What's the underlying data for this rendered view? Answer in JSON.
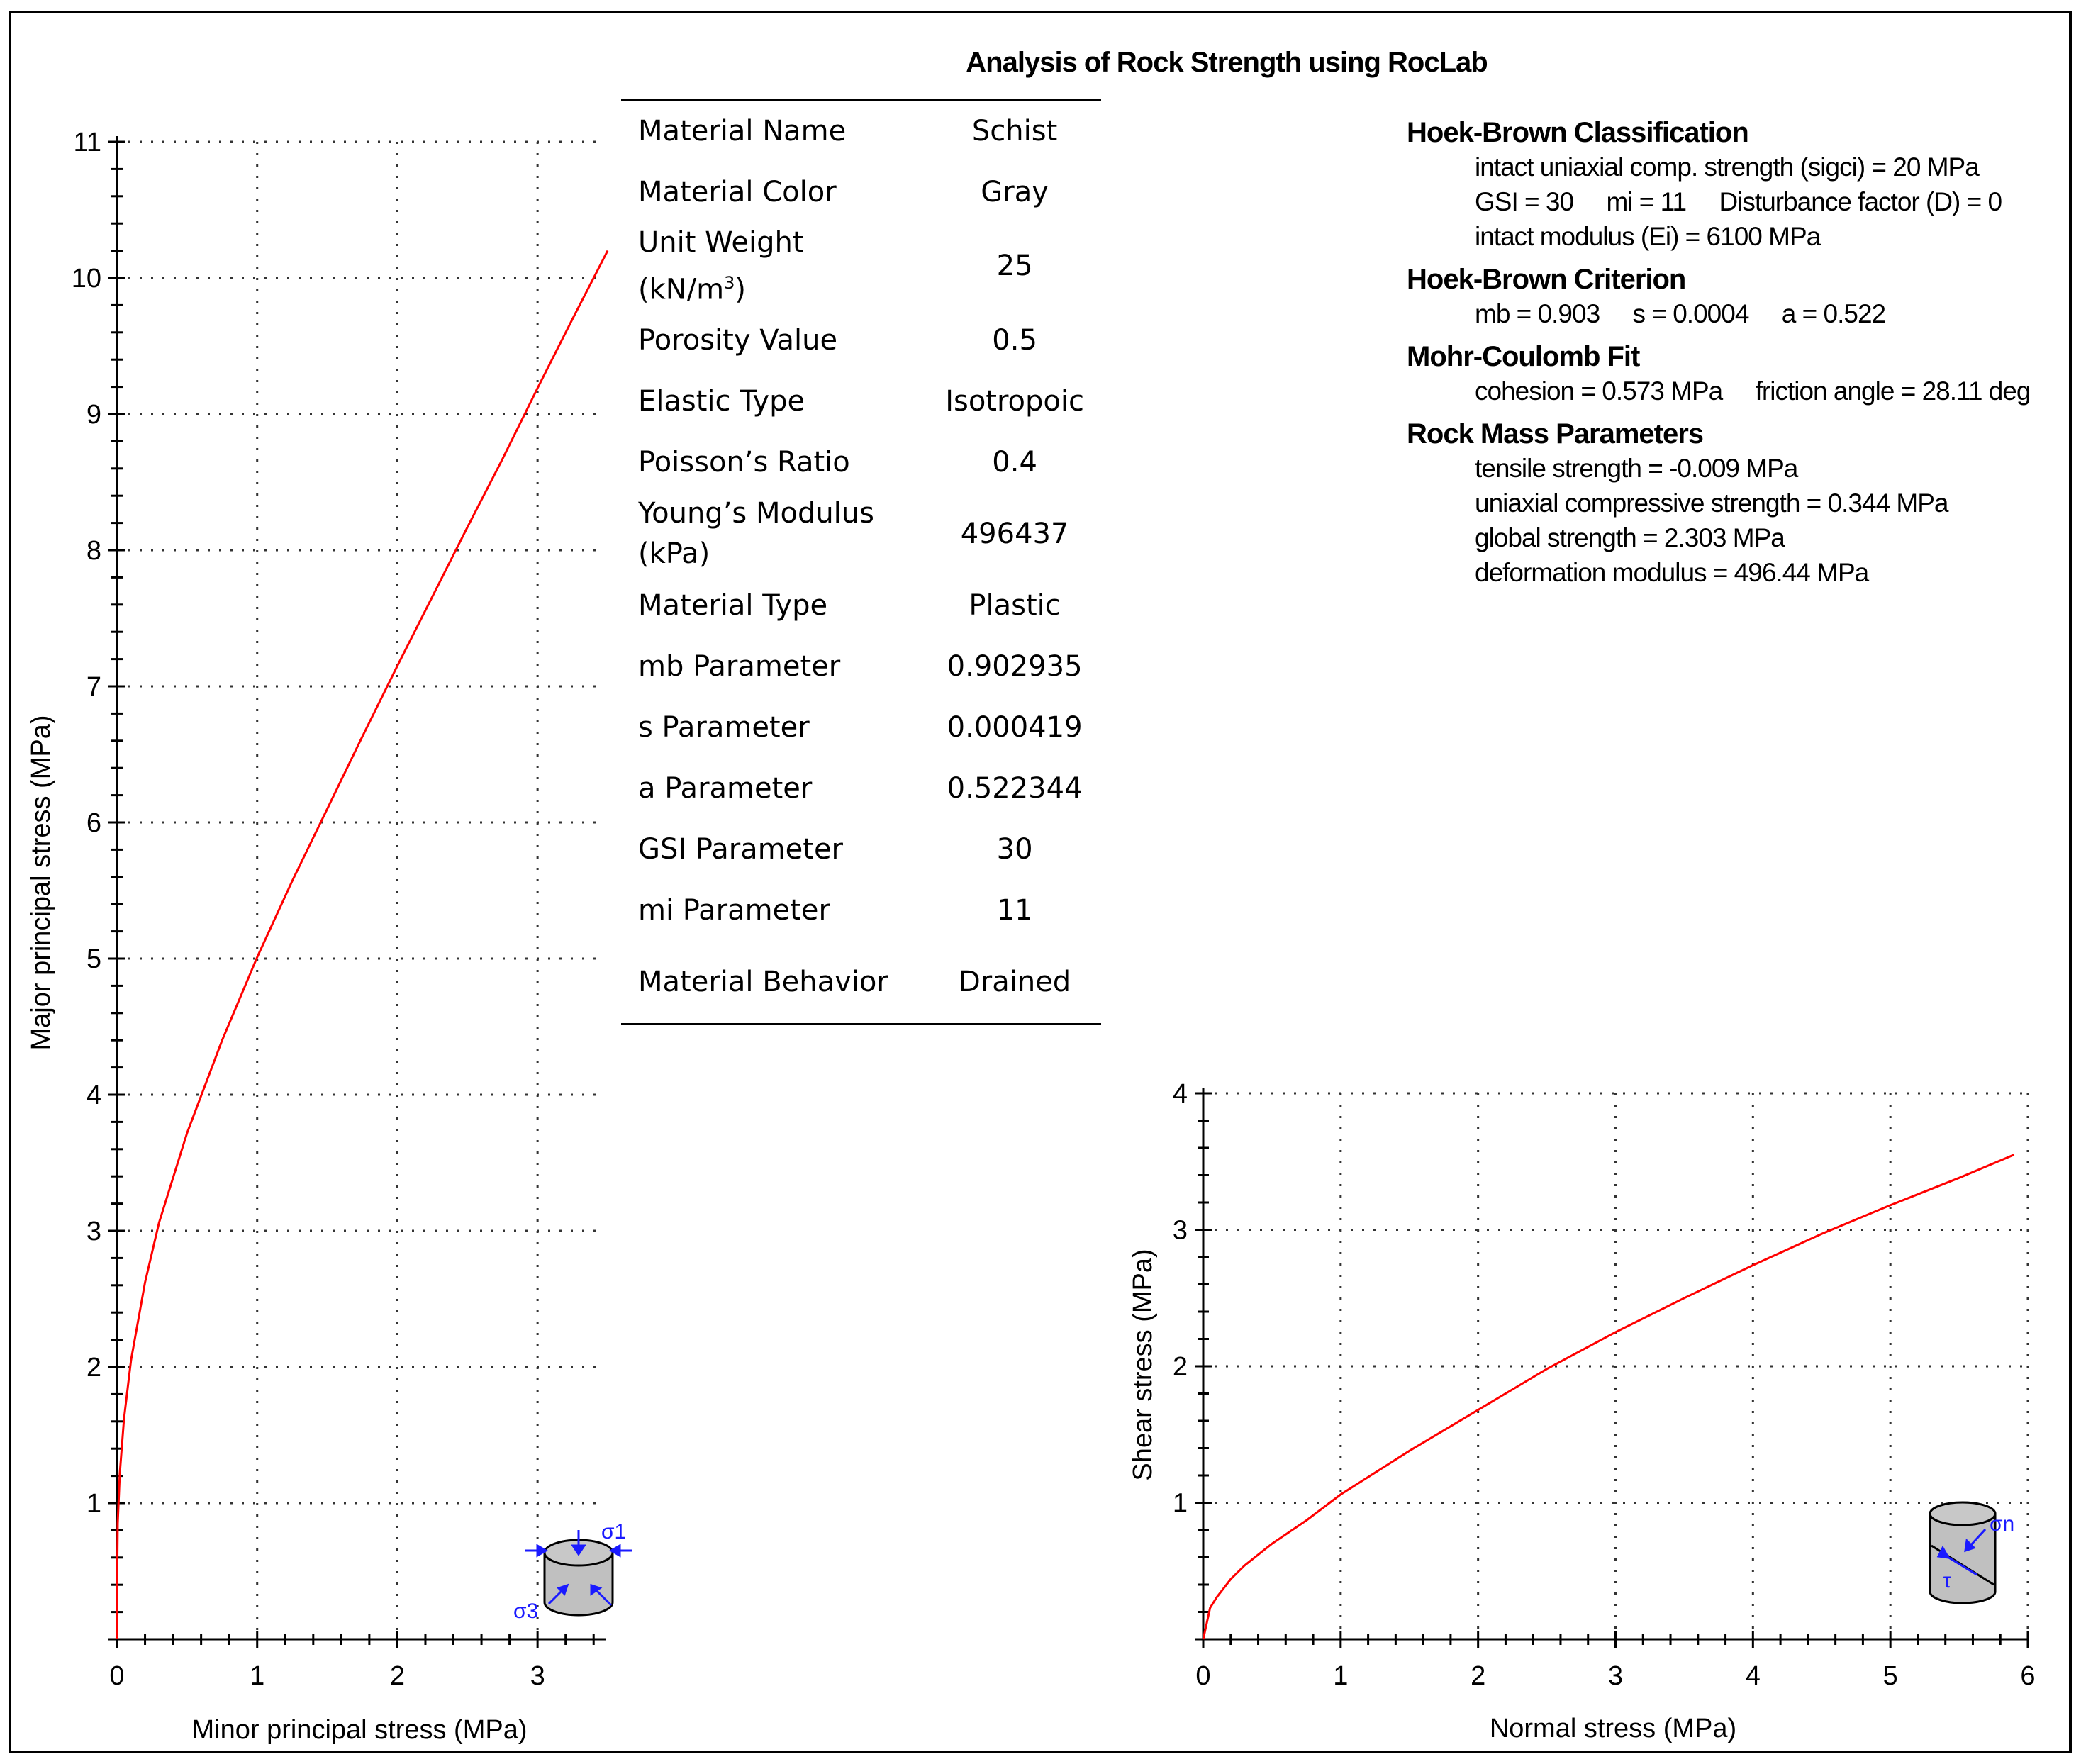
{
  "title": "Analysis of Rock Strength using RocLab",
  "properties_table": [
    {
      "name": "Material Name",
      "value": "Schist"
    },
    {
      "name": "Material Color",
      "value": "Gray"
    },
    {
      "name": "Unit Weight (kN/m³)",
      "value": "25"
    },
    {
      "name": "Porosity Value",
      "value": "0.5"
    },
    {
      "name": "Elastic Type",
      "value": "Isotropoic"
    },
    {
      "name": "Poisson’s Ratio",
      "value": "0.4"
    },
    {
      "name": "Young’s Modulus (kPa)",
      "value": "496437"
    },
    {
      "name": "Material Type",
      "value": "Plastic"
    },
    {
      "name": "mb Parameter",
      "value": "0.902935"
    },
    {
      "name": "s Parameter",
      "value": "0.000419"
    },
    {
      "name": "a Parameter",
      "value": "0.522344"
    },
    {
      "name": "GSI Parameter",
      "value": "30"
    },
    {
      "name": "mi Parameter",
      "value": "11"
    },
    {
      "name": "Material Behavior",
      "value": "Drained"
    }
  ],
  "summary": {
    "hoek_brown_classification": {
      "heading": "Hoek-Brown Classification",
      "lines": [
        "intact uniaxial comp. strength (sigci) = 20 MPa",
        "GSI = 30     mi = 11     Disturbance factor (D) = 0",
        "intact modulus (Ei) = 6100 MPa"
      ]
    },
    "hoek_brown_criterion": {
      "heading": "Hoek-Brown Criterion",
      "lines": [
        "mb = 0.903     s = 0.0004     a = 0.522"
      ]
    },
    "mohr_coulomb_fit": {
      "heading": "Mohr-Coulomb Fit",
      "lines": [
        "cohesion = 0.573 MPa     friction angle = 28.11 deg"
      ]
    },
    "rock_mass_parameters": {
      "heading": "Rock Mass Parameters",
      "lines": [
        "tensile strength = -0.009 MPa",
        "uniaxial compressive strength = 0.344 MPa",
        "global strength = 2.303 MPa",
        "deformation modulus = 496.44 MPa"
      ]
    }
  },
  "chart_data": [
    {
      "type": "line",
      "xlabel": "Minor principal stress (MPa)",
      "ylabel": "Major principal stress (MPa)",
      "xlim": [
        0,
        3.5
      ],
      "ylim": [
        0,
        11
      ],
      "xticks": [
        "0",
        "1",
        "2",
        "3"
      ],
      "yticks": [
        "1",
        "2",
        "3",
        "4",
        "5",
        "6",
        "7",
        "8",
        "9",
        "10",
        "11"
      ],
      "grid": true,
      "line_color": "#ff0000",
      "icon_labels": [
        "σ1",
        "σ3"
      ],
      "series": [
        {
          "x": [
            0,
            0.005,
            0.02,
            0.05,
            0.1,
            0.2,
            0.3,
            0.5,
            0.75,
            1.0,
            1.25,
            1.5,
            1.75,
            2.0,
            2.25,
            2.5,
            2.75,
            3.0,
            3.25,
            3.5
          ],
          "y": [
            0.34,
            0.85,
            1.22,
            1.62,
            2.05,
            2.62,
            3.06,
            3.72,
            4.4,
            5.01,
            5.57,
            6.1,
            6.63,
            7.15,
            7.66,
            8.17,
            8.67,
            9.19,
            9.7,
            10.2
          ]
        }
      ]
    },
    {
      "type": "line",
      "xlabel": "Normal stress (MPa)",
      "ylabel": "Shear stress (MPa)",
      "xlim": [
        0,
        6
      ],
      "ylim": [
        0,
        4
      ],
      "xticks": [
        "0",
        "1",
        "2",
        "3",
        "4",
        "5",
        "6"
      ],
      "yticks": [
        "1",
        "2",
        "3",
        "4"
      ],
      "grid": true,
      "line_color": "#ff0000",
      "icon_labels": [
        "σn",
        "τ"
      ],
      "series": [
        {
          "x": [
            0,
            0.05,
            0.1,
            0.2,
            0.3,
            0.5,
            0.75,
            1.0,
            1.5,
            2.0,
            2.5,
            3.0,
            3.5,
            4.0,
            4.5,
            5.0,
            5.5,
            5.9
          ],
          "y": [
            0,
            0.23,
            0.31,
            0.44,
            0.54,
            0.7,
            0.87,
            1.06,
            1.38,
            1.68,
            1.98,
            2.25,
            2.5,
            2.74,
            2.97,
            3.18,
            3.38,
            3.55
          ]
        }
      ]
    }
  ]
}
